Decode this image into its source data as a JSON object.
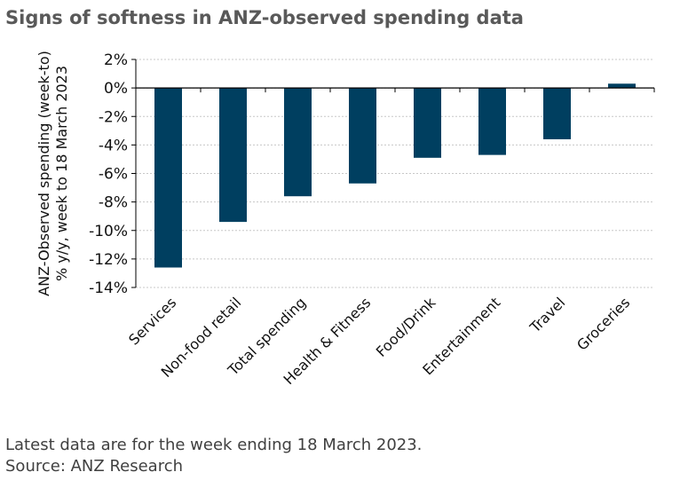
{
  "title": "Signs of softness in ANZ-observed spending data",
  "footnotes": {
    "line1": "Latest data are for the week ending 18 March 2023.",
    "line2": "Source: ANZ Research"
  },
  "colors": {
    "bar": "#003f60",
    "grid": "#c8c8c8",
    "axis": "#000000"
  },
  "chart_data": {
    "type": "bar",
    "title": "Signs of softness in ANZ-observed spending data",
    "categories": [
      "Services",
      "Non-food retail",
      "Total spending",
      "Health & Fitness",
      "Food/Drink",
      "Entertainment",
      "Travel",
      "Groceries"
    ],
    "values": [
      -12.6,
      -9.4,
      -7.6,
      -6.7,
      -4.9,
      -4.7,
      -3.6,
      0.3
    ],
    "ylabel_lines": [
      "ANZ-Observed spending (week-to)",
      "% y/y, week to 18 March 2023"
    ],
    "xlabel": "",
    "ylim": [
      -14,
      2
    ],
    "yticks": [
      2,
      0,
      -2,
      -4,
      -6,
      -8,
      -10,
      -12,
      -14
    ],
    "ytick_labels": [
      "2%",
      "0%",
      "-2%",
      "-4%",
      "-6%",
      "-8%",
      "-10%",
      "-12%",
      "-14%"
    ],
    "grid": true,
    "legend": "none"
  }
}
